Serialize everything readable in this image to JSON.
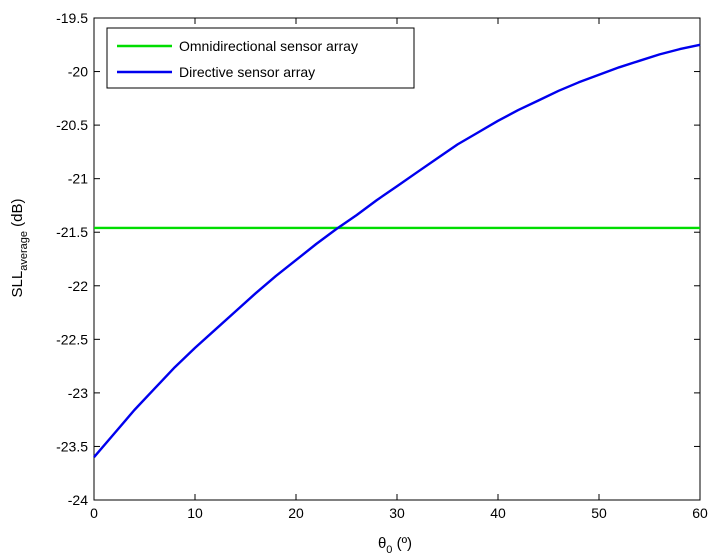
{
  "chart_data": {
    "type": "line",
    "title": "",
    "xlabel": {
      "main": "θ",
      "sub": "0",
      "unit": " (º)"
    },
    "ylabel": {
      "main": "SLL",
      "sub": "average",
      "unit": " (dB)"
    },
    "xlim": [
      0,
      60
    ],
    "ylim": [
      -24,
      -19.5
    ],
    "xticks": [
      "0",
      "10",
      "20",
      "30",
      "40",
      "50",
      "60"
    ],
    "yticks": [
      "-24",
      "-23.5",
      "-23",
      "-22.5",
      "-22",
      "-21.5",
      "-21",
      "-20.5",
      "-20",
      "-19.5"
    ],
    "grid": false,
    "legend_position": "top-left",
    "series": [
      {
        "name": "Omnidirectional sensor array",
        "color": "#00dd00",
        "x": [
          0,
          60
        ],
        "y": [
          -21.46,
          -21.46
        ]
      },
      {
        "name": "Directive sensor array",
        "color": "#0000ee",
        "x": [
          0,
          2,
          4,
          6,
          8,
          10,
          12,
          14,
          16,
          18,
          20,
          22,
          24,
          26,
          28,
          30,
          32,
          34,
          36,
          38,
          40,
          42,
          44,
          46,
          48,
          50,
          52,
          54,
          56,
          58,
          60
        ],
        "y": [
          -23.6,
          -23.38,
          -23.16,
          -22.96,
          -22.76,
          -22.58,
          -22.41,
          -22.24,
          -22.07,
          -21.91,
          -21.76,
          -21.61,
          -21.47,
          -21.34,
          -21.2,
          -21.07,
          -20.94,
          -20.81,
          -20.68,
          -20.57,
          -20.46,
          -20.36,
          -20.27,
          -20.18,
          -20.1,
          -20.03,
          -19.96,
          -19.9,
          -19.84,
          -19.79,
          -19.75
        ]
      }
    ]
  }
}
